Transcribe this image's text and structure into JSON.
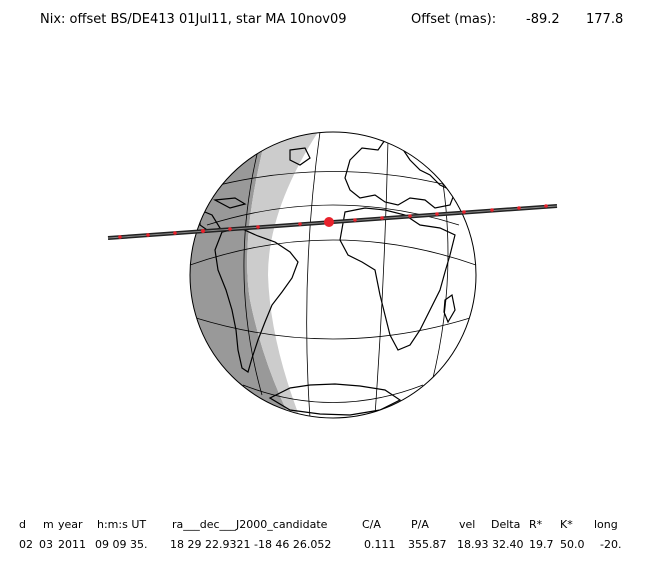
{
  "title": {
    "text": "Nix: offset BS/DE413 01Jul11, star MA 10nov09",
    "offset_label": "Offset (mas):",
    "offset_x": "-89.2",
    "offset_y": "177.8"
  },
  "table": {
    "headers": [
      "d",
      "m",
      "year",
      "h:m:s UT",
      "ra___dec___J2000_candidate",
      "C/A",
      "P/A",
      "vel",
      "Delta",
      "R*",
      "K*",
      "long"
    ],
    "values": [
      "02",
      "03",
      "2011",
      "09 09 35.",
      "18 29 22.9321 -18 46 26.052",
      "0.111",
      "355.87",
      "18.93",
      "32.40",
      "19.7",
      "50.0",
      "-20."
    ]
  },
  "colors": {
    "night": "#999999",
    "twilight": "#cccccc",
    "day": "#ffffff",
    "track": "#222222",
    "track_marks": "#e8222c"
  }
}
